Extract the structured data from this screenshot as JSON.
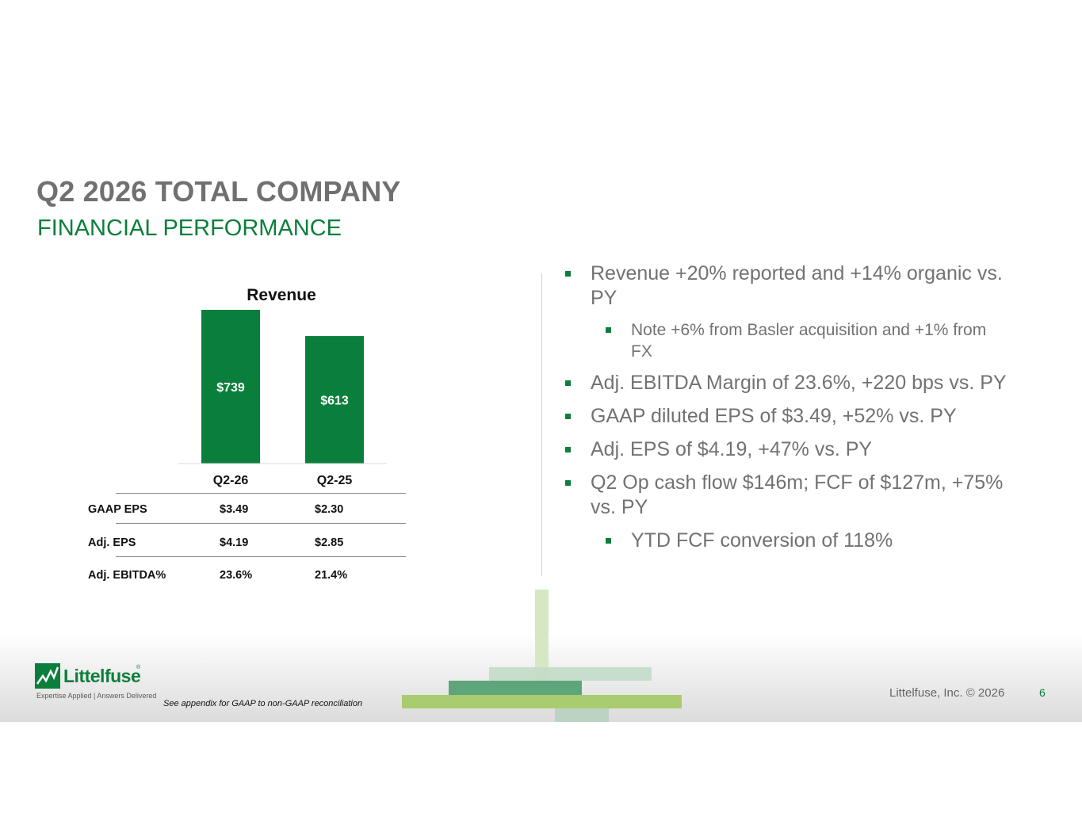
{
  "header": {
    "title": "Q2 2026 TOTAL COMPANY",
    "subtitle": "FINANCIAL PERFORMANCE"
  },
  "chart_data": {
    "type": "bar",
    "title": "Revenue",
    "categories": [
      "Q2-26",
      "Q2-25"
    ],
    "values": [
      739,
      613
    ],
    "value_labels": [
      "$739",
      "$613"
    ],
    "bar_color": "#0a7f3b",
    "ylim": [
      0,
      739
    ],
    "grid": false,
    "legend": "none"
  },
  "metrics_table": {
    "rows": [
      {
        "label": "GAAP EPS",
        "q2_26": "$3.49",
        "q2_25": "$2.30"
      },
      {
        "label": "Adj. EPS",
        "q2_26": "$4.19",
        "q2_25": "$2.85"
      },
      {
        "label": "Adj. EBITDA%",
        "q2_26": "23.6%",
        "q2_25": "21.4%"
      }
    ]
  },
  "bullets": [
    {
      "level": 1,
      "text": "Revenue +20% reported and +14% organic vs. PY"
    },
    {
      "level": 2,
      "text": "Note +6% from Basler acquisition and +1% from FX"
    },
    {
      "level": 1,
      "text": "Adj. EBITDA Margin of 23.6%, +220 bps vs. PY"
    },
    {
      "level": 1,
      "text": "GAAP diluted EPS of $3.49, +52% vs. PY"
    },
    {
      "level": 1,
      "text": "Adj. EPS of $4.19, +47% vs. PY"
    },
    {
      "level": 1,
      "text": "Q2 Op cash flow $146m; FCF of $127m, +75% vs. PY"
    },
    {
      "level": 2,
      "text": "YTD FCF conversion of 118%"
    }
  ],
  "footer": {
    "logo_text": "Littelfuse",
    "logo_registered": "®",
    "tagline": "Expertise Applied | Answers Delivered",
    "footnote": "See appendix for GAAP to non-GAAP reconciliation",
    "copyright": "Littelfuse, Inc. © 2026",
    "page_number": "6"
  },
  "colors": {
    "brand_green": "#0a7f3b",
    "title_gray": "#707070",
    "light_green": "#a9cc6e",
    "mid_green": "#4f9f6b"
  }
}
